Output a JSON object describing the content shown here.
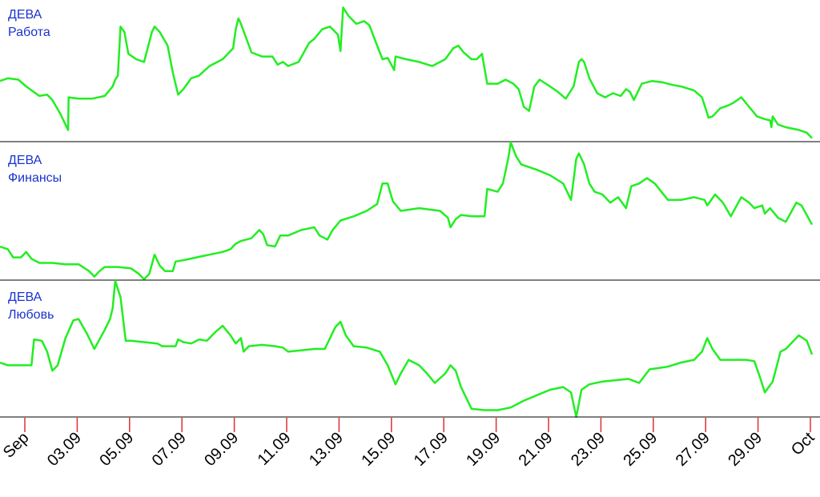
{
  "chart_data": {
    "type": "line",
    "series_color": "#22ee22",
    "separator_color": "#000000",
    "tick_color": "#e03030",
    "label_color": "#1a33cc",
    "x_start": "2016-09-01",
    "x_end": "2016-10-01",
    "x_tick_labels": [
      "Sep",
      "03.09",
      "05.09",
      "07.09",
      "09.09",
      "11.09",
      "13.09",
      "15.09",
      "17.09",
      "19.09",
      "21.09",
      "23.09",
      "25.09",
      "27.09",
      "29.09",
      "Oct"
    ],
    "panels": [
      {
        "sign": "ДЕВА",
        "topic": "Работа",
        "ylim": [
          0,
          100
        ],
        "points": [
          [
            0,
            44
          ],
          [
            0.3,
            46
          ],
          [
            0.7,
            45
          ],
          [
            1,
            40
          ],
          [
            1.5,
            33
          ],
          [
            1.8,
            34
          ],
          [
            2,
            30
          ],
          [
            2.3,
            20
          ],
          [
            2.6,
            8
          ],
          [
            2.62,
            32
          ],
          [
            3,
            31
          ],
          [
            3.5,
            31
          ],
          [
            4,
            33
          ],
          [
            4.3,
            40
          ],
          [
            4.4,
            45
          ],
          [
            4.5,
            48
          ],
          [
            4.6,
            84
          ],
          [
            4.75,
            80
          ],
          [
            4.9,
            64
          ],
          [
            5.2,
            60
          ],
          [
            5.5,
            58
          ],
          [
            5.8,
            80
          ],
          [
            5.9,
            84
          ],
          [
            6.1,
            80
          ],
          [
            6.4,
            70
          ],
          [
            6.6,
            50
          ],
          [
            6.8,
            34
          ],
          [
            7,
            38
          ],
          [
            7.3,
            46
          ],
          [
            7.6,
            48
          ],
          [
            8,
            55
          ],
          [
            8.5,
            60
          ],
          [
            8.9,
            68
          ],
          [
            9,
            82
          ],
          [
            9.1,
            90
          ],
          [
            9.2,
            86
          ],
          [
            9.6,
            65
          ],
          [
            10,
            62
          ],
          [
            10.4,
            62
          ],
          [
            10.6,
            56
          ],
          [
            10.8,
            58
          ],
          [
            11,
            55
          ],
          [
            11.4,
            58
          ],
          [
            11.8,
            72
          ],
          [
            12,
            75
          ],
          [
            12.3,
            82
          ],
          [
            12.6,
            84
          ],
          [
            12.9,
            78
          ],
          [
            13,
            66
          ],
          [
            13.1,
            98
          ],
          [
            13.3,
            92
          ],
          [
            13.6,
            86
          ],
          [
            13.9,
            88
          ],
          [
            14.1,
            85
          ],
          [
            14.4,
            70
          ],
          [
            14.6,
            60
          ],
          [
            14.8,
            61
          ],
          [
            15.05,
            52
          ],
          [
            15.1,
            62
          ],
          [
            15.5,
            60
          ],
          [
            16,
            58
          ],
          [
            16.5,
            55
          ],
          [
            17,
            60
          ],
          [
            17.3,
            68
          ],
          [
            17.5,
            70
          ],
          [
            17.7,
            65
          ],
          [
            18,
            60
          ],
          [
            18.2,
            60
          ],
          [
            18.4,
            64
          ],
          [
            18.6,
            42
          ],
          [
            19,
            42
          ],
          [
            19.3,
            45
          ],
          [
            19.6,
            42
          ],
          [
            19.8,
            38
          ],
          [
            20,
            25
          ],
          [
            20.2,
            22
          ],
          [
            20.4,
            40
          ],
          [
            20.6,
            45
          ],
          [
            21,
            40
          ],
          [
            21.3,
            36
          ],
          [
            21.6,
            31
          ],
          [
            21.9,
            40
          ],
          [
            22.1,
            58
          ],
          [
            22.2,
            60
          ],
          [
            22.3,
            58
          ],
          [
            22.5,
            46
          ],
          [
            22.8,
            35
          ],
          [
            23.1,
            32
          ],
          [
            23.4,
            35
          ],
          [
            23.7,
            33
          ],
          [
            23.9,
            38
          ],
          [
            24.05,
            36
          ],
          [
            24.2,
            30
          ],
          [
            24.5,
            42
          ],
          [
            24.9,
            44
          ],
          [
            25.3,
            43
          ],
          [
            25.7,
            41
          ],
          [
            26,
            40
          ],
          [
            26.5,
            37
          ],
          [
            26.8,
            32
          ],
          [
            27,
            20
          ],
          [
            27.05,
            17
          ],
          [
            27.2,
            18
          ],
          [
            27.5,
            24
          ],
          [
            27.8,
            26
          ],
          [
            28,
            28
          ],
          [
            28.3,
            32
          ],
          [
            28.6,
            25
          ],
          [
            28.9,
            18
          ],
          [
            29.2,
            16
          ],
          [
            29.4,
            15
          ],
          [
            29.45,
            10
          ],
          [
            29.5,
            18
          ],
          [
            29.7,
            12
          ],
          [
            30,
            10
          ],
          [
            30.5,
            8
          ],
          [
            30.8,
            6
          ],
          [
            31,
            2
          ]
        ]
      },
      {
        "sign": "ДЕВА",
        "topic": "Финансы",
        "ylim": [
          0,
          100
        ],
        "points": [
          [
            0,
            24
          ],
          [
            0.3,
            22
          ],
          [
            0.5,
            16
          ],
          [
            0.8,
            16
          ],
          [
            1,
            20
          ],
          [
            1.2,
            15
          ],
          [
            1.5,
            12
          ],
          [
            2,
            12
          ],
          [
            2.5,
            11
          ],
          [
            3,
            11
          ],
          [
            3.4,
            6
          ],
          [
            3.6,
            2
          ],
          [
            3.8,
            6
          ],
          [
            4,
            9
          ],
          [
            4.5,
            9
          ],
          [
            5,
            8
          ],
          [
            5.3,
            4
          ],
          [
            5.5,
            0
          ],
          [
            5.7,
            4
          ],
          [
            5.9,
            18
          ],
          [
            6.1,
            10
          ],
          [
            6.3,
            6
          ],
          [
            6.6,
            6
          ],
          [
            6.7,
            13
          ],
          [
            7,
            14
          ],
          [
            7.5,
            16
          ],
          [
            8,
            18
          ],
          [
            8.5,
            20
          ],
          [
            8.8,
            22
          ],
          [
            9,
            26
          ],
          [
            9.2,
            28
          ],
          [
            9.6,
            30
          ],
          [
            9.9,
            36
          ],
          [
            10.05,
            33
          ],
          [
            10.2,
            25
          ],
          [
            10.5,
            24
          ],
          [
            10.7,
            32
          ],
          [
            11,
            32
          ],
          [
            11.5,
            36
          ],
          [
            12,
            38
          ],
          [
            12.2,
            32
          ],
          [
            12.5,
            29
          ],
          [
            12.7,
            36
          ],
          [
            13,
            43
          ],
          [
            13.5,
            46
          ],
          [
            14,
            50
          ],
          [
            14.4,
            55
          ],
          [
            14.6,
            70
          ],
          [
            14.8,
            70
          ],
          [
            15,
            57
          ],
          [
            15.3,
            50
          ],
          [
            16,
            52
          ],
          [
            16.8,
            50
          ],
          [
            17.1,
            45
          ],
          [
            17.2,
            38
          ],
          [
            17.4,
            44
          ],
          [
            17.6,
            47
          ],
          [
            18,
            46
          ],
          [
            18.5,
            46
          ],
          [
            18.6,
            66
          ],
          [
            19,
            64
          ],
          [
            19.2,
            70
          ],
          [
            19.4,
            88
          ],
          [
            19.5,
            100
          ],
          [
            19.7,
            90
          ],
          [
            19.9,
            84
          ],
          [
            20.5,
            80
          ],
          [
            21,
            76
          ],
          [
            21.5,
            70
          ],
          [
            21.8,
            58
          ],
          [
            22,
            88
          ],
          [
            22.1,
            92
          ],
          [
            22.3,
            84
          ],
          [
            22.5,
            70
          ],
          [
            22.7,
            64
          ],
          [
            23,
            62
          ],
          [
            23.3,
            56
          ],
          [
            23.6,
            60
          ],
          [
            23.9,
            52
          ],
          [
            24.1,
            68
          ],
          [
            24.4,
            70
          ],
          [
            24.7,
            74
          ],
          [
            25,
            70
          ],
          [
            25.5,
            58
          ],
          [
            26,
            58
          ],
          [
            26.5,
            60
          ],
          [
            26.9,
            58
          ],
          [
            27,
            54
          ],
          [
            27.3,
            62
          ],
          [
            27.6,
            56
          ],
          [
            27.9,
            46
          ],
          [
            28.3,
            60
          ],
          [
            28.6,
            56
          ],
          [
            28.8,
            52
          ],
          [
            29.1,
            54
          ],
          [
            29.2,
            48
          ],
          [
            29.4,
            52
          ],
          [
            29.7,
            45
          ],
          [
            30,
            42
          ],
          [
            30.4,
            56
          ],
          [
            30.6,
            54
          ],
          [
            31,
            40
          ]
        ]
      },
      {
        "sign": "ДЕВА",
        "topic": "Любовь",
        "ylim": [
          0,
          100
        ],
        "points": [
          [
            0,
            40
          ],
          [
            0.3,
            38
          ],
          [
            0.7,
            38
          ],
          [
            1,
            38
          ],
          [
            1.2,
            38
          ],
          [
            1.3,
            57
          ],
          [
            1.6,
            56
          ],
          [
            1.8,
            48
          ],
          [
            2,
            34
          ],
          [
            2.2,
            38
          ],
          [
            2.5,
            58
          ],
          [
            2.8,
            71
          ],
          [
            3,
            72
          ],
          [
            3.3,
            62
          ],
          [
            3.6,
            50
          ],
          [
            4,
            64
          ],
          [
            4.2,
            72
          ],
          [
            4.3,
            80
          ],
          [
            4.4,
            100
          ],
          [
            4.6,
            88
          ],
          [
            4.8,
            56
          ],
          [
            5,
            56
          ],
          [
            5.5,
            55
          ],
          [
            6,
            54
          ],
          [
            6.2,
            52
          ],
          [
            6.5,
            52
          ],
          [
            6.7,
            52
          ],
          [
            6.8,
            57
          ],
          [
            7,
            55
          ],
          [
            7.3,
            54
          ],
          [
            7.6,
            57
          ],
          [
            7.9,
            56
          ],
          [
            8.2,
            62
          ],
          [
            8.5,
            67
          ],
          [
            8.8,
            60
          ],
          [
            9,
            54
          ],
          [
            9.2,
            58
          ],
          [
            9.3,
            48
          ],
          [
            9.5,
            52
          ],
          [
            10,
            53
          ],
          [
            10.5,
            52
          ],
          [
            10.8,
            51
          ],
          [
            11,
            48
          ],
          [
            11.5,
            49
          ],
          [
            12,
            50
          ],
          [
            12.4,
            50
          ],
          [
            12.8,
            66
          ],
          [
            13,
            70
          ],
          [
            13.2,
            60
          ],
          [
            13.5,
            52
          ],
          [
            14,
            51
          ],
          [
            14.5,
            48
          ],
          [
            14.8,
            38
          ],
          [
            15.1,
            24
          ],
          [
            15.3,
            32
          ],
          [
            15.6,
            42
          ],
          [
            16,
            38
          ],
          [
            16.3,
            32
          ],
          [
            16.6,
            25
          ],
          [
            17,
            32
          ],
          [
            17.2,
            38
          ],
          [
            17.4,
            34
          ],
          [
            17.6,
            22
          ],
          [
            18,
            6
          ],
          [
            18.5,
            5
          ],
          [
            19,
            5
          ],
          [
            19.5,
            7
          ],
          [
            20,
            12
          ],
          [
            20.5,
            16
          ],
          [
            21,
            20
          ],
          [
            21.5,
            22
          ],
          [
            21.8,
            18
          ],
          [
            22,
            0
          ],
          [
            22.2,
            20
          ],
          [
            22.5,
            24
          ],
          [
            23,
            26
          ],
          [
            23.5,
            27
          ],
          [
            24,
            28
          ],
          [
            24.4,
            25
          ],
          [
            24.8,
            35
          ],
          [
            25.5,
            37
          ],
          [
            26,
            40
          ],
          [
            26.5,
            42
          ],
          [
            26.8,
            48
          ],
          [
            27,
            58
          ],
          [
            27.2,
            50
          ],
          [
            27.5,
            42
          ],
          [
            28,
            42
          ],
          [
            28.5,
            42
          ],
          [
            28.8,
            41
          ],
          [
            29,
            30
          ],
          [
            29.2,
            18
          ],
          [
            29.5,
            26
          ],
          [
            29.8,
            48
          ],
          [
            30,
            50
          ],
          [
            30.5,
            60
          ],
          [
            30.8,
            56
          ],
          [
            31,
            46
          ]
        ]
      }
    ]
  }
}
